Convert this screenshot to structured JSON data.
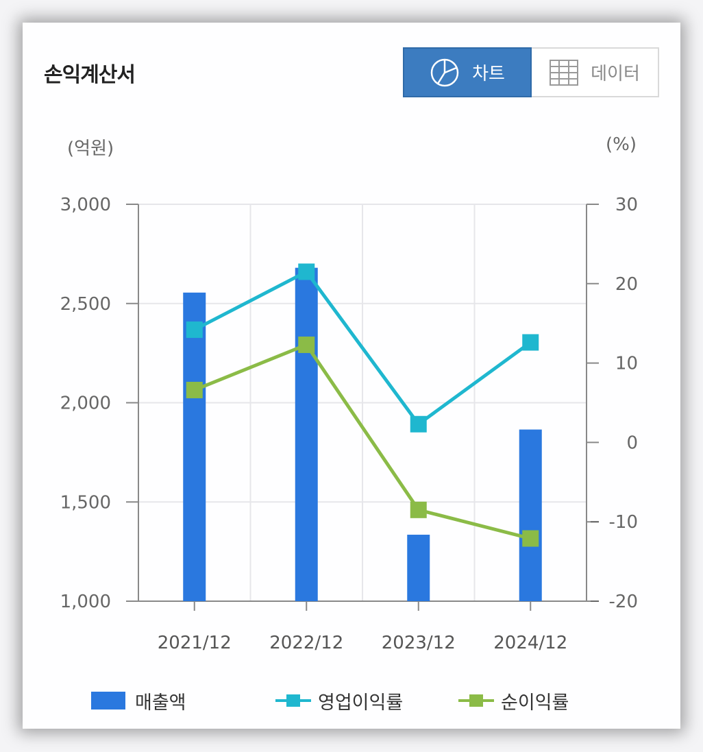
{
  "header": {
    "title": "손익계산서",
    "chart_tab_label": "차트",
    "data_tab_label": "데이터",
    "chart_tab_icon": "pie-chart-icon",
    "data_tab_icon": "table-grid-icon"
  },
  "colors": {
    "bar": "#2a78df",
    "operating_margin": "#1fb7cf",
    "net_margin": "#8bbb47",
    "active_tab": "#3c7cc0"
  },
  "chart_data": {
    "type": "bar+line",
    "categories": [
      "2021/12",
      "2022/12",
      "2023/12",
      "2024/12"
    ],
    "left_axis": {
      "unit": "(억원)",
      "ylim": [
        1000,
        3000
      ],
      "ticks": [
        "3,000",
        "2,500",
        "2,000",
        "1,500",
        "1,000"
      ],
      "tick_values": [
        3000,
        2500,
        2000,
        1500,
        1000
      ]
    },
    "right_axis": {
      "unit": "(%)",
      "ylim": [
        -20,
        30
      ],
      "ticks": [
        "30",
        "20",
        "10",
        "0",
        "-10",
        "-20"
      ],
      "tick_values": [
        30,
        20,
        10,
        0,
        -10,
        -20
      ]
    },
    "series": [
      {
        "name": "매출액",
        "type": "bar",
        "axis": "left",
        "values": [
          2555,
          2680,
          1335,
          1865
        ]
      },
      {
        "name": "영업이익률",
        "type": "line",
        "axis": "right",
        "values": [
          14.2,
          21.5,
          2.3,
          12.6
        ]
      },
      {
        "name": "순이익률",
        "type": "line",
        "axis": "right",
        "values": [
          6.6,
          12.3,
          -8.5,
          -12.1
        ]
      }
    ],
    "grid": true,
    "legend_position": "bottom"
  }
}
